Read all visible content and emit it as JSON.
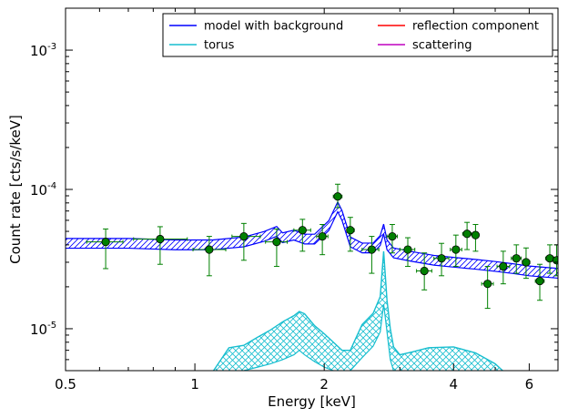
{
  "chart_data": {
    "type": "line",
    "xlabel": "Energy [keV]",
    "ylabel": "Count rate [cts/s/keV]",
    "xscale": "log",
    "yscale": "log",
    "xlim": [
      0.5,
      7.0
    ],
    "ylim": [
      5e-06,
      0.002
    ],
    "grid": false,
    "legend_placement": "top-right",
    "x_ticks": [
      {
        "value": 0.5,
        "label": "0.5"
      },
      {
        "value": 1,
        "label": "1"
      },
      {
        "value": 2,
        "label": "2"
      },
      {
        "value": 4,
        "label": "4"
      },
      {
        "value": 6,
        "label": "6"
      }
    ],
    "y_ticks": [
      {
        "value": 1e-05,
        "base": "10",
        "exp": "-5"
      },
      {
        "value": 0.0001,
        "base": "10",
        "exp": "-4"
      },
      {
        "value": 0.001,
        "base": "10",
        "exp": "-3"
      }
    ],
    "legend": [
      {
        "label": "model with background",
        "color": "#0000ff"
      },
      {
        "label": "torus",
        "color": "#17becf"
      },
      {
        "label": "reflection component",
        "color": "#ff0000"
      },
      {
        "label": "scattering",
        "color": "#bf00bf"
      }
    ],
    "colors": {
      "model": "#0000ff",
      "torus": "#17becf",
      "data": "#008000"
    },
    "series": [
      {
        "name": "model with background",
        "x": [
          0.5,
          0.7,
          0.9,
          1.1,
          1.3,
          1.45,
          1.55,
          1.6,
          1.7,
          1.8,
          1.9,
          2.05,
          2.15,
          2.2,
          2.3,
          2.45,
          2.6,
          2.7,
          2.75,
          2.8,
          2.9,
          3.2,
          3.6,
          4.0,
          4.5,
          5.0,
          5.5,
          6.0,
          7.0
        ],
        "y": [
          4.1e-05,
          4.1e-05,
          4e-05,
          4e-05,
          4.2e-05,
          4.6e-05,
          5e-05,
          4.5e-05,
          4.7e-05,
          4.4e-05,
          4.4e-05,
          5.5e-05,
          7.5e-05,
          6.5e-05,
          4.2e-05,
          3.8e-05,
          3.8e-05,
          4.3e-05,
          5.2e-05,
          4e-05,
          3.5e-05,
          3.3e-05,
          3.1e-05,
          3e-05,
          2.9e-05,
          2.8e-05,
          2.7e-05,
          2.6e-05,
          2.5e-05
        ],
        "band_width_dex": 0.035
      },
      {
        "name": "torus",
        "x": [
          1.08,
          1.15,
          1.2,
          1.3,
          1.4,
          1.5,
          1.6,
          1.7,
          1.75,
          1.8,
          1.9,
          2.0,
          2.1,
          2.2,
          2.3,
          2.45,
          2.6,
          2.7,
          2.75,
          2.8,
          2.85,
          2.9,
          3.0,
          3.2,
          3.5,
          4.0,
          4.5,
          5.0,
          5.4
        ],
        "y": [
          4.5e-06,
          6e-06,
          7.3e-06,
          7.6e-06,
          8.7e-06,
          9.8e-06,
          1.12e-05,
          1.24e-05,
          1.33e-05,
          1.28e-05,
          1.05e-05,
          9.2e-06,
          8e-06,
          7e-06,
          7e-06,
          1.07e-05,
          1.29e-05,
          1.7e-05,
          3.6e-05,
          1.6e-05,
          1e-05,
          7.4e-06,
          6.5e-06,
          6.8e-06,
          7.3e-06,
          7.4e-06,
          6.7e-06,
          5.6e-06,
          4.5e-06
        ],
        "y_lower": [
          4.5e-06,
          4.6e-06,
          4.8e-06,
          5e-06,
          5.3e-06,
          5.6e-06,
          6e-06,
          6.5e-06,
          7e-06,
          6.5e-06,
          5.8e-06,
          5.3e-06,
          5e-06,
          4.8e-06,
          5e-06,
          6.2e-06,
          7.5e-06,
          9.5e-06,
          1.5e-05,
          9.5e-06,
          6e-06,
          5e-06,
          4.8e-06,
          4.6e-06,
          4.5e-06,
          4.5e-06,
          4.5e-06,
          4.5e-06,
          4.5e-06
        ]
      },
      {
        "name": "data",
        "points": [
          {
            "x": 0.62,
            "xlo": 0.56,
            "xhi": 0.68,
            "y": 4.2e-05,
            "ylo": 2.7e-05,
            "yhi": 5.2e-05
          },
          {
            "x": 0.83,
            "xlo": 0.72,
            "xhi": 0.96,
            "y": 4.4e-05,
            "ylo": 2.9e-05,
            "yhi": 5.4e-05
          },
          {
            "x": 1.08,
            "xlo": 0.99,
            "xhi": 1.18,
            "y": 3.7e-05,
            "ylo": 2.4e-05,
            "yhi": 4.6e-05
          },
          {
            "x": 1.3,
            "xlo": 1.22,
            "xhi": 1.42,
            "y": 4.6e-05,
            "ylo": 3.1e-05,
            "yhi": 5.7e-05
          },
          {
            "x": 1.55,
            "xlo": 1.46,
            "xhi": 1.64,
            "y": 4.2e-05,
            "ylo": 2.8e-05,
            "yhi": 5.2e-05
          },
          {
            "x": 1.78,
            "xlo": 1.7,
            "xhi": 1.86,
            "y": 5.1e-05,
            "ylo": 3.6e-05,
            "yhi": 6.1e-05
          },
          {
            "x": 1.98,
            "xlo": 1.92,
            "xhi": 2.04,
            "y": 4.6e-05,
            "ylo": 3.4e-05,
            "yhi": 5.6e-05
          },
          {
            "x": 2.15,
            "xlo": 2.1,
            "xhi": 2.2,
            "y": 8.9e-05,
            "ylo": 7.4e-05,
            "yhi": 0.000109
          },
          {
            "x": 2.3,
            "xlo": 2.26,
            "xhi": 2.35,
            "y": 5.1e-05,
            "ylo": 3.6e-05,
            "yhi": 6.3e-05
          },
          {
            "x": 2.58,
            "xlo": 2.45,
            "xhi": 2.68,
            "y": 3.7e-05,
            "ylo": 2.5e-05,
            "yhi": 4.6e-05
          },
          {
            "x": 2.88,
            "xlo": 2.8,
            "xhi": 2.96,
            "y": 4.6e-05,
            "ylo": 3.5e-05,
            "yhi": 5.6e-05
          },
          {
            "x": 3.13,
            "xlo": 3.0,
            "xhi": 3.25,
            "y": 3.7e-05,
            "ylo": 2.8e-05,
            "yhi": 4.5e-05
          },
          {
            "x": 3.42,
            "xlo": 3.28,
            "xhi": 3.56,
            "y": 2.6e-05,
            "ylo": 1.9e-05,
            "yhi": 3.5e-05
          },
          {
            "x": 3.75,
            "xlo": 3.6,
            "xhi": 3.9,
            "y": 3.2e-05,
            "ylo": 2.4e-05,
            "yhi": 4.1e-05
          },
          {
            "x": 4.05,
            "xlo": 3.93,
            "xhi": 4.18,
            "y": 3.7e-05,
            "ylo": 2.8e-05,
            "yhi": 4.7e-05
          },
          {
            "x": 4.3,
            "xlo": 4.2,
            "xhi": 4.4,
            "y": 4.8e-05,
            "ylo": 3.7e-05,
            "yhi": 5.8e-05
          },
          {
            "x": 4.5,
            "xlo": 4.42,
            "xhi": 4.58,
            "y": 4.7e-05,
            "ylo": 3.6e-05,
            "yhi": 5.6e-05
          },
          {
            "x": 4.8,
            "xlo": 4.65,
            "xhi": 4.95,
            "y": 2.1e-05,
            "ylo": 1.4e-05,
            "yhi": 2.8e-05
          },
          {
            "x": 5.22,
            "xlo": 5.05,
            "xhi": 5.4,
            "y": 2.8e-05,
            "ylo": 2.1e-05,
            "yhi": 3.6e-05
          },
          {
            "x": 5.6,
            "xlo": 5.45,
            "xhi": 5.75,
            "y": 3.2e-05,
            "ylo": 2.5e-05,
            "yhi": 4e-05
          },
          {
            "x": 5.9,
            "xlo": 5.78,
            "xhi": 6.02,
            "y": 3e-05,
            "ylo": 2.3e-05,
            "yhi": 3.8e-05
          },
          {
            "x": 6.35,
            "xlo": 6.2,
            "xhi": 6.5,
            "y": 2.2e-05,
            "ylo": 1.6e-05,
            "yhi": 2.9e-05
          },
          {
            "x": 6.7,
            "xlo": 6.55,
            "xhi": 6.85,
            "y": 3.2e-05,
            "ylo": 2.5e-05,
            "yhi": 4e-05
          },
          {
            "x": 6.95,
            "xlo": 6.85,
            "xhi": 7.0,
            "y": 3.1e-05,
            "ylo": 2.4e-05,
            "yhi": 4e-05
          }
        ]
      }
    ]
  }
}
